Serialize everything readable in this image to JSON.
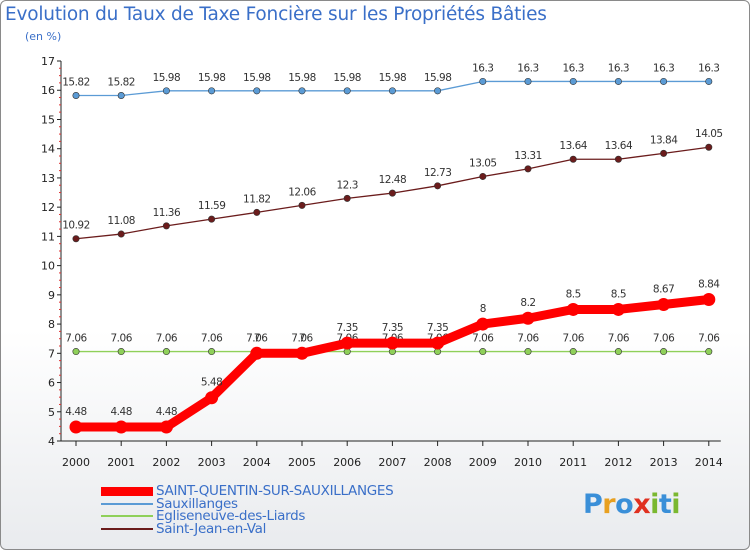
{
  "title": "Evolution du Taux de Taxe Foncière sur les Propriétés Bâties",
  "subtitle": "(en %)",
  "logo": {
    "text": "Proxiti",
    "letters": [
      "P",
      "r",
      "o",
      "x",
      "i",
      "t",
      "i"
    ],
    "colors": [
      "#3a8fd8",
      "#e8a020",
      "#3a8fd8",
      "#e03020",
      "#7ab830",
      "#3a8fd8",
      "#7ab830"
    ]
  },
  "chart_data": {
    "type": "line",
    "categories": [
      "2000",
      "2001",
      "2002",
      "2003",
      "2004",
      "2005",
      "2006",
      "2007",
      "2008",
      "2009",
      "2010",
      "2011",
      "2012",
      "2013",
      "2014"
    ],
    "ylim": [
      4,
      17
    ],
    "yticks": [
      "4",
      "5",
      "6",
      "7",
      "8",
      "9",
      "10",
      "11",
      "12",
      "13",
      "14",
      "15",
      "16",
      "17"
    ],
    "grid": false,
    "legend_position": "bottom",
    "series": [
      {
        "name": "Sauxillanges",
        "color": "#5b9bd5",
        "values": [
          15.82,
          15.82,
          15.98,
          15.98,
          15.98,
          15.98,
          15.98,
          15.98,
          15.98,
          16.3,
          16.3,
          16.3,
          16.3,
          16.3,
          16.3
        ],
        "labels": [
          "15.82",
          "15.82",
          "15.98",
          "15.98",
          "15.98",
          "15.98",
          "15.98",
          "15.98",
          "15.98",
          "16.3",
          "16.3",
          "16.3",
          "16.3",
          "16.3",
          "16.3"
        ]
      },
      {
        "name": "Saint-Jean-en-Val",
        "color": "#6b1c1c",
        "values": [
          10.92,
          11.08,
          11.36,
          11.59,
          11.82,
          12.06,
          12.3,
          12.48,
          12.73,
          13.05,
          13.31,
          13.64,
          13.64,
          13.84,
          14.05
        ],
        "labels": [
          "10.92",
          "11.08",
          "11.36",
          "11.59",
          "11.82",
          "12.06",
          "12.3",
          "12.48",
          "12.73",
          "13.05",
          "13.31",
          "13.64",
          "13.64",
          "13.84",
          "14.05"
        ]
      },
      {
        "name": "Egliseneuve-des-Liards",
        "color": "#8fd05a",
        "values": [
          7.06,
          7.06,
          7.06,
          7.06,
          7.06,
          7.06,
          7.06,
          7.06,
          7.06,
          7.06,
          7.06,
          7.06,
          7.06,
          7.06,
          7.06
        ],
        "labels": [
          "7.06",
          "7.06",
          "7.06",
          "7.06",
          "7.06",
          "7.06",
          "7.06",
          "7.06",
          "7.06",
          "7.06",
          "7.06",
          "7.06",
          "7.06",
          "7.06",
          "7.06"
        ]
      },
      {
        "name": "SAINT-QUENTIN-SUR-SAUXILLANGES",
        "color": "#ff0000",
        "values": [
          4.48,
          4.48,
          4.48,
          5.48,
          7,
          7,
          7.35,
          7.35,
          7.35,
          8,
          8.2,
          8.5,
          8.5,
          8.67,
          8.84
        ],
        "labels": [
          "4.48",
          "4.48",
          "4.48",
          "5.48",
          "7",
          "7",
          "7.35",
          "7.35",
          "7.35",
          "8",
          "8.2",
          "8.5",
          "8.5",
          "8.67",
          "8.84"
        ]
      }
    ],
    "legend_order": [
      "SAINT-QUENTIN-SUR-SAUXILLANGES",
      "Sauxillanges",
      "Egliseneuve-des-Liards",
      "Saint-Jean-en-Val"
    ]
  }
}
